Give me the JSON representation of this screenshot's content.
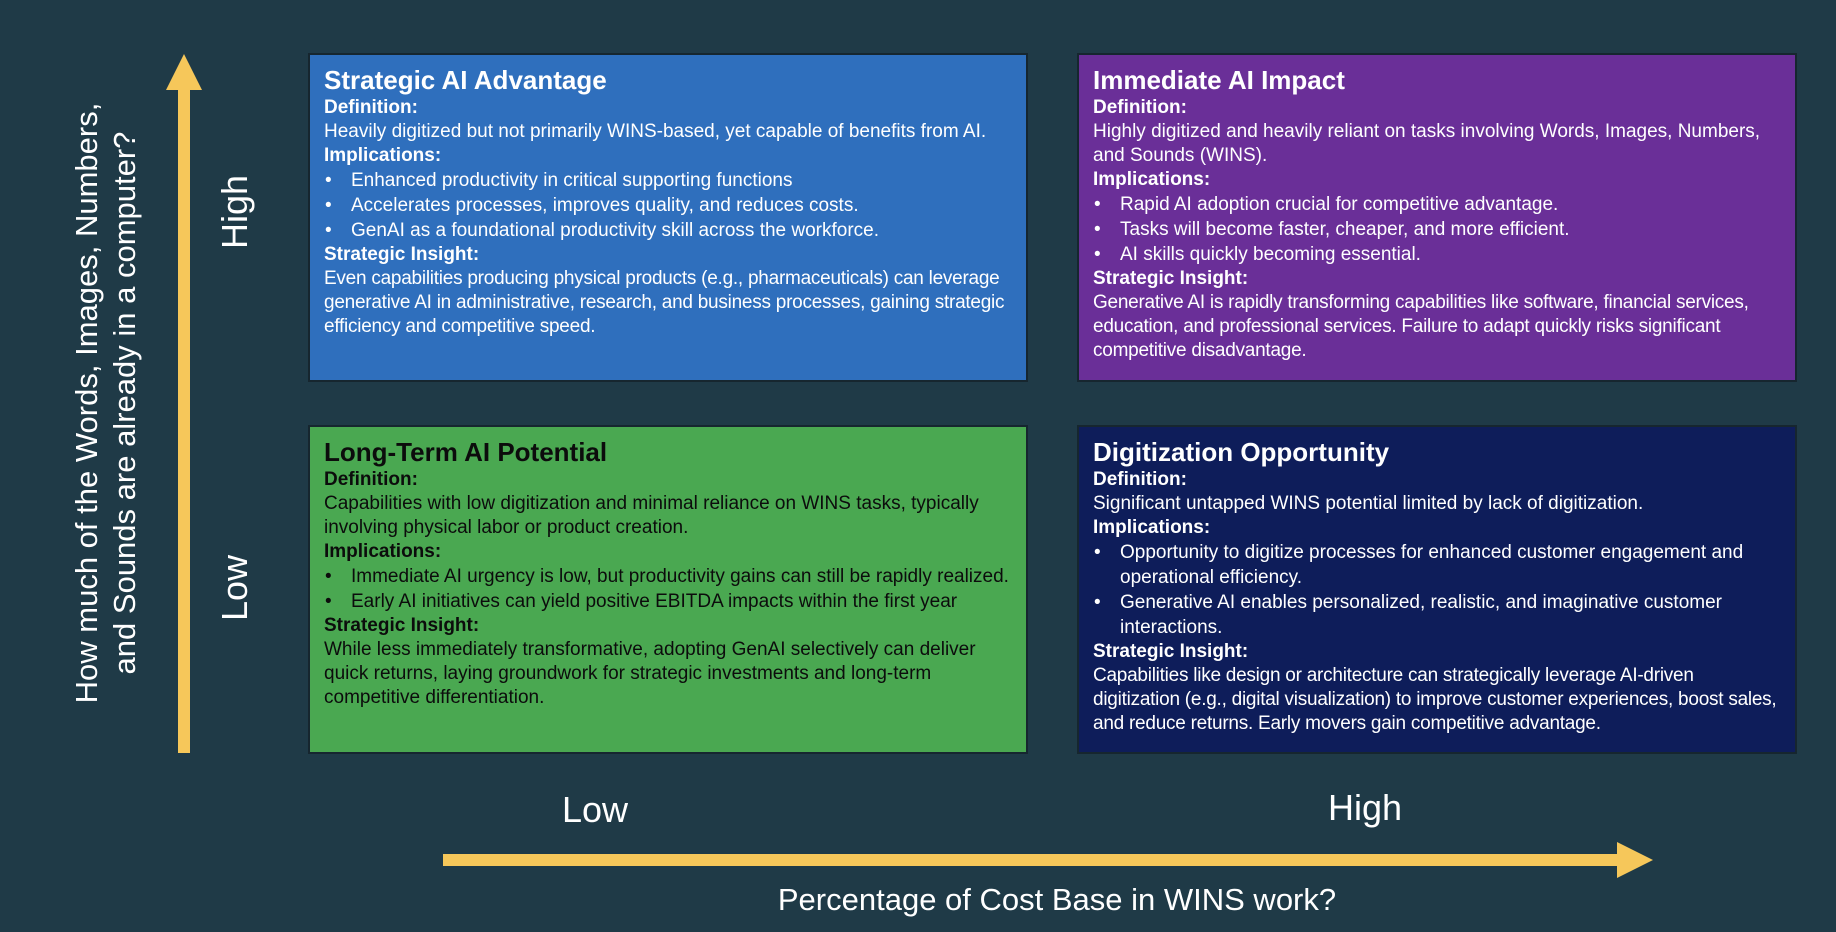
{
  "colors": {
    "background": "#1f3a47",
    "arrow": "#f6c75a",
    "strategic_ai_advantage": "#2f6fbd",
    "immediate_ai_impact": "#6a2f98",
    "long_term_ai_potential": "#4aa851",
    "digitization_opportunity": "#0e1d5a"
  },
  "axes": {
    "y_title": "How much of the Words, Images, Numbers,\nand Sounds are already in a computer?",
    "y_high": "High",
    "y_low": "Low",
    "x_title": "Percentage of Cost Base in WINS work?",
    "x_low": "Low",
    "x_high": "High"
  },
  "quadrants": {
    "top_left": {
      "title": "Strategic AI Advantage",
      "definition_label": "Definition:",
      "definition": "Heavily digitized but not primarily WINS-based, yet capable of benefits from AI.",
      "implications_label": "Implications:",
      "implications": [
        "Enhanced productivity in critical supporting functions",
        "Accelerates processes, improves quality, and reduces costs.",
        "GenAI as a foundational productivity skill across the workforce."
      ],
      "insight_label": "Strategic Insight:",
      "insight": "Even capabilities producing physical products (e.g., pharmaceuticals) can leverage generative AI in administrative, research, and business processes, gaining strategic efficiency and competitive speed."
    },
    "top_right": {
      "title": "Immediate AI Impact",
      "definition_label": "Definition:",
      "definition": "Highly digitized and heavily reliant on tasks involving Words, Images, Numbers, and Sounds (WINS).",
      "implications_label": "Implications:",
      "implications": [
        "Rapid AI adoption crucial for competitive advantage.",
        "Tasks will become faster, cheaper, and more efficient.",
        "AI skills quickly becoming essential."
      ],
      "insight_label": "Strategic Insight:",
      "insight": "Generative AI is rapidly transforming capabilities like software, financial services, education, and professional services. Failure to adapt quickly risks significant competitive disadvantage."
    },
    "bottom_left": {
      "title": "Long-Term AI Potential",
      "definition_label": "Definition:",
      "definition": "Capabilities with low digitization and minimal reliance on WINS tasks, typically involving physical labor or product creation.",
      "implications_label": "Implications:",
      "implications": [
        "Immediate AI urgency is low, but productivity gains can still be rapidly realized.",
        "Early AI initiatives can yield positive EBITDA impacts within the first year"
      ],
      "insight_label": "Strategic Insight:",
      "insight": "While less immediately transformative, adopting GenAI selectively can deliver quick returns, laying groundwork for strategic investments and long-term competitive differentiation."
    },
    "bottom_right": {
      "title": "Digitization Opportunity",
      "definition_label": "Definition:",
      "definition": "Significant untapped WINS potential limited by lack of digitization.",
      "implications_label": "Implications:",
      "implications": [
        "Opportunity to digitize processes for enhanced customer engagement and operational efficiency.",
        "Generative AI enables personalized, realistic, and imaginative customer interactions."
      ],
      "insight_label": "Strategic Insight:",
      "insight": "Capabilities like design or architecture can strategically leverage AI-driven digitization (e.g., digital visualization) to improve customer experiences, boost sales, and reduce returns. Early movers gain competitive advantage."
    }
  }
}
